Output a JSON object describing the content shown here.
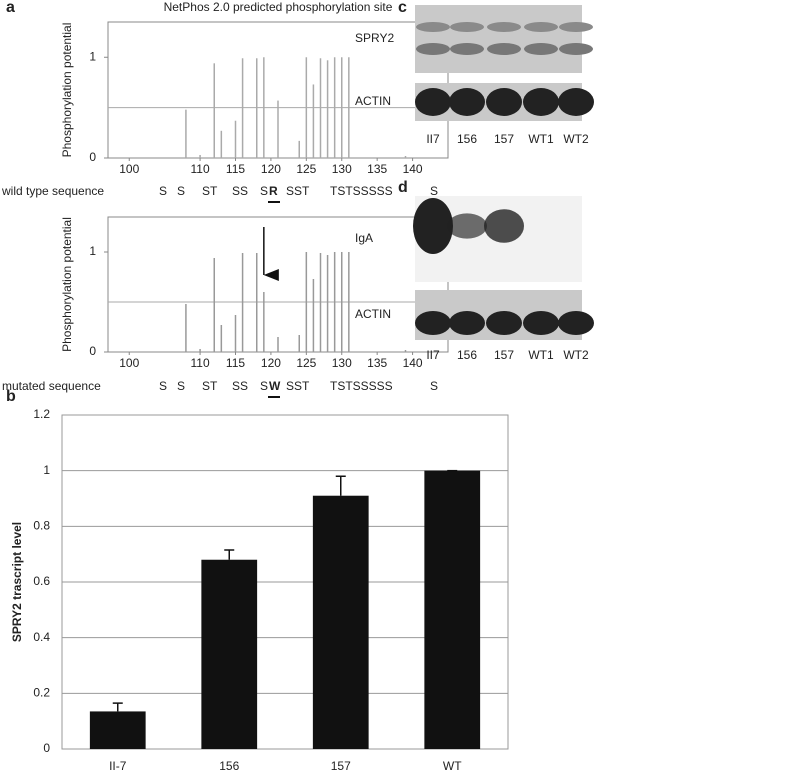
{
  "chart_data": [
    {
      "type": "needle",
      "panel": "a",
      "title": "NetPhos 2.0 predicted phosphorylation site",
      "ylabel": "Phosphorylation potential",
      "sequence_label": "wild type sequence",
      "sequence": [
        "S",
        "S",
        "ST",
        "SS",
        "S",
        "R",
        "SST",
        "TSTSSSSS",
        "S"
      ],
      "highlight": 5,
      "x": [
        108,
        110,
        112,
        113,
        115,
        116,
        118,
        119,
        121,
        124,
        125,
        126,
        127,
        128,
        129,
        130,
        131,
        139
      ],
      "values": [
        0.48,
        0.03,
        0.94,
        0.27,
        0.37,
        0.99,
        0.99,
        1.0,
        0.57,
        0.17,
        1.0,
        0.73,
        0.99,
        0.97,
        1.0,
        1.0,
        1.0,
        0.02
      ],
      "xlim": [
        97,
        145
      ],
      "xticks": [
        100,
        110,
        115,
        120,
        125,
        130,
        135,
        140
      ],
      "ylim": [
        0,
        1.35
      ],
      "yticks": [
        0,
        1
      ],
      "threshold": 0.5,
      "color": "#aaaaaa"
    },
    {
      "type": "needle",
      "ylabel": "Phosphorylation potential",
      "sequence_label": "mutated sequence",
      "sequence": [
        "S",
        "S",
        "ST",
        "SS",
        "S",
        "W",
        "SST",
        "TSTSSSSS",
        "S"
      ],
      "highlight": 5,
      "arrow_at": 119,
      "x": [
        108,
        110,
        112,
        113,
        115,
        116,
        118,
        119,
        121,
        124,
        125,
        126,
        127,
        128,
        129,
        130,
        131,
        139
      ],
      "values": [
        0.48,
        0.03,
        0.94,
        0.27,
        0.37,
        0.99,
        0.99,
        0.6,
        0.15,
        0.17,
        1.0,
        0.73,
        0.99,
        0.97,
        1.0,
        1.0,
        1.0,
        0.02
      ],
      "xlim": [
        97,
        145
      ],
      "xticks": [
        100,
        110,
        115,
        120,
        125,
        130,
        135,
        140
      ],
      "ylim": [
        0,
        1.35
      ],
      "yticks": [
        0,
        1
      ],
      "threshold": 0.5,
      "color": "#999999"
    },
    {
      "type": "bar",
      "panel": "b",
      "ylabel": "SPRY2 trascript level",
      "categories": [
        "II-7",
        "156",
        "157",
        "WT"
      ],
      "values": [
        0.135,
        0.68,
        0.91,
        1.0
      ],
      "errors": [
        0.03,
        0.035,
        0.07,
        0
      ],
      "ylim": [
        0,
        1.2
      ],
      "yticks": [
        0,
        0.2,
        0.4,
        0.6,
        0.8,
        1,
        1.2
      ],
      "grid": true,
      "color": "#111111"
    }
  ],
  "blots": [
    {
      "panel": "c",
      "rows": [
        "SPRY2",
        "ACTIN"
      ],
      "lanes": [
        "II7",
        "156",
        "157",
        "WT1",
        "WT2"
      ]
    },
    {
      "panel": "d",
      "rows": [
        "IgA",
        "ACTIN"
      ],
      "lanes": [
        "II7",
        "156",
        "157",
        "WT1",
        "WT2"
      ]
    }
  ]
}
